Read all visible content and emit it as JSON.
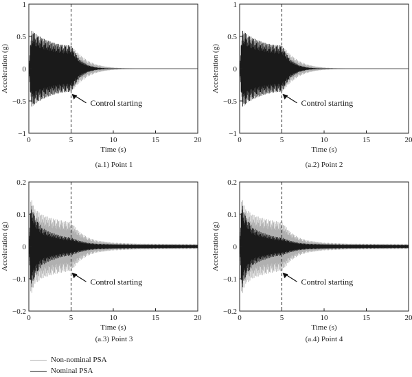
{
  "chart_data": [
    {
      "type": "line",
      "caption": "(a.1) Point 1",
      "xlabel": "Time (s)",
      "ylabel": "Acceleration (g)",
      "xlim": [
        0,
        20
      ],
      "ylim": [
        -1,
        1
      ],
      "xticks": [
        "0",
        "5",
        "10",
        "15",
        "20"
      ],
      "yticks": [
        "−1",
        "−0.5",
        "0",
        "0.5",
        "1"
      ],
      "ytick_values": [
        -1,
        -0.5,
        0,
        0.5,
        1
      ],
      "vline_x": 5,
      "annotation": {
        "text": "Control starting",
        "x": 5,
        "y": -0.36
      },
      "series": [
        {
          "name": "Non-nominal PSA",
          "color": "#b0b0b0",
          "envelope": [
            [
              0,
              0.0
            ],
            [
              0.3,
              0.6
            ],
            [
              1,
              0.52
            ],
            [
              2,
              0.45
            ],
            [
              3,
              0.4
            ],
            [
              4,
              0.37
            ],
            [
              5,
              0.36
            ],
            [
              6,
              0.22
            ],
            [
              7,
              0.12
            ],
            [
              8,
              0.065
            ],
            [
              9,
              0.035
            ],
            [
              10,
              0.018
            ],
            [
              11,
              0.009
            ],
            [
              12,
              0.004
            ],
            [
              12.6,
              0.0
            ]
          ]
        },
        {
          "name": "Nominal PSA",
          "color": "#1a1a1a",
          "envelope": [
            [
              0,
              0.0
            ],
            [
              0.3,
              0.6
            ],
            [
              1,
              0.52
            ],
            [
              2,
              0.45
            ],
            [
              3,
              0.4
            ],
            [
              4,
              0.37
            ],
            [
              5,
              0.36
            ],
            [
              6,
              0.14
            ],
            [
              7,
              0.055
            ],
            [
              8,
              0.02
            ],
            [
              9,
              0.008
            ],
            [
              10,
              0.003
            ],
            [
              11,
              0.0
            ]
          ]
        }
      ]
    },
    {
      "type": "line",
      "caption": "(a.2) Point 2",
      "xlabel": "Time (s)",
      "ylabel": "Acceleration (g)",
      "xlim": [
        0,
        20
      ],
      "ylim": [
        -1,
        1
      ],
      "xticks": [
        "0",
        "5",
        "10",
        "15",
        "20"
      ],
      "yticks": [
        "−1",
        "−0.5",
        "0",
        "0.5",
        "1"
      ],
      "ytick_values": [
        -1,
        -0.5,
        0,
        0.5,
        1
      ],
      "vline_x": 5,
      "annotation": {
        "text": "Control starting",
        "x": 5,
        "y": -0.36
      },
      "series": [
        {
          "name": "Non-nominal PSA",
          "color": "#b0b0b0",
          "envelope": [
            [
              0,
              0.0
            ],
            [
              0.3,
              0.6
            ],
            [
              1,
              0.52
            ],
            [
              2,
              0.45
            ],
            [
              3,
              0.4
            ],
            [
              4,
              0.37
            ],
            [
              5,
              0.36
            ],
            [
              6,
              0.22
            ],
            [
              7,
              0.12
            ],
            [
              8,
              0.065
            ],
            [
              9,
              0.035
            ],
            [
              10,
              0.018
            ],
            [
              11,
              0.009
            ],
            [
              12,
              0.004
            ],
            [
              12.6,
              0.0
            ]
          ]
        },
        {
          "name": "Nominal PSA",
          "color": "#1a1a1a",
          "envelope": [
            [
              0,
              0.0
            ],
            [
              0.3,
              0.6
            ],
            [
              1,
              0.52
            ],
            [
              2,
              0.45
            ],
            [
              3,
              0.4
            ],
            [
              4,
              0.37
            ],
            [
              5,
              0.36
            ],
            [
              6,
              0.14
            ],
            [
              7,
              0.055
            ],
            [
              8,
              0.02
            ],
            [
              9,
              0.008
            ],
            [
              10,
              0.003
            ],
            [
              11,
              0.0
            ]
          ]
        }
      ]
    },
    {
      "type": "line",
      "caption": "(a.3) Point 3",
      "xlabel": "Time (s)",
      "ylabel": "Acceleration (g)",
      "xlim": [
        0,
        20
      ],
      "ylim": [
        -0.2,
        0.2
      ],
      "xticks": [
        "0",
        "5",
        "10",
        "15",
        "20"
      ],
      "yticks": [
        "−0.2",
        "−0.1",
        "0",
        "0.1",
        "0.2"
      ],
      "ytick_values": [
        -0.2,
        -0.1,
        0,
        0.1,
        0.2
      ],
      "vline_x": 5,
      "annotation": {
        "text": "Control starting",
        "x": 5,
        "y": -0.075
      },
      "series": [
        {
          "name": "Non-nominal PSA",
          "color": "#b0b0b0",
          "envelope": [
            [
              0,
              0.0
            ],
            [
              0.25,
              0.16
            ],
            [
              0.6,
              0.12
            ],
            [
              1.5,
              0.1
            ],
            [
              2.5,
              0.09
            ],
            [
              4,
              0.08
            ],
            [
              5,
              0.076
            ],
            [
              6,
              0.045
            ],
            [
              7,
              0.028
            ],
            [
              8,
              0.019
            ],
            [
              10,
              0.012
            ],
            [
              13,
              0.009
            ],
            [
              20,
              0.008
            ]
          ]
        },
        {
          "name": "Nominal PSA",
          "color": "#1a1a1a",
          "envelope": [
            [
              0,
              0.0
            ],
            [
              0.25,
              0.14
            ],
            [
              0.6,
              0.1
            ],
            [
              1.5,
              0.06
            ],
            [
              2.5,
              0.045
            ],
            [
              4,
              0.032
            ],
            [
              5,
              0.028
            ],
            [
              6,
              0.018
            ],
            [
              7,
              0.012
            ],
            [
              8,
              0.009
            ],
            [
              10,
              0.007
            ],
            [
              13,
              0.006
            ],
            [
              20,
              0.005
            ]
          ]
        }
      ]
    },
    {
      "type": "line",
      "caption": "(a.4) Point 4",
      "xlabel": "Time (s)",
      "ylabel": "Acceleration (g)",
      "xlim": [
        0,
        20
      ],
      "ylim": [
        -0.2,
        0.2
      ],
      "xticks": [
        "0",
        "5",
        "10",
        "15",
        "20"
      ],
      "yticks": [
        "−0.2",
        "−0.1",
        "0",
        "0.1",
        "0.2"
      ],
      "ytick_values": [
        -0.2,
        -0.1,
        0,
        0.1,
        0.2
      ],
      "vline_x": 5,
      "annotation": {
        "text": "Control starting",
        "x": 5,
        "y": -0.075
      },
      "series": [
        {
          "name": "Non-nominal PSA",
          "color": "#b0b0b0",
          "envelope": [
            [
              0,
              0.0
            ],
            [
              0.25,
              0.16
            ],
            [
              0.6,
              0.12
            ],
            [
              1.5,
              0.1
            ],
            [
              2.5,
              0.09
            ],
            [
              4,
              0.08
            ],
            [
              5,
              0.076
            ],
            [
              6,
              0.045
            ],
            [
              7,
              0.028
            ],
            [
              8,
              0.019
            ],
            [
              10,
              0.012
            ],
            [
              13,
              0.009
            ],
            [
              20,
              0.008
            ]
          ]
        },
        {
          "name": "Nominal PSA",
          "color": "#1a1a1a",
          "envelope": [
            [
              0,
              0.0
            ],
            [
              0.25,
              0.14
            ],
            [
              0.6,
              0.1
            ],
            [
              1.5,
              0.06
            ],
            [
              2.5,
              0.045
            ],
            [
              4,
              0.032
            ],
            [
              5,
              0.028
            ],
            [
              6,
              0.018
            ],
            [
              7,
              0.012
            ],
            [
              8,
              0.009
            ],
            [
              10,
              0.007
            ],
            [
              13,
              0.006
            ],
            [
              20,
              0.005
            ]
          ]
        }
      ]
    }
  ],
  "legend": [
    {
      "label": "Non-nominal PSA",
      "color": "#b0b0b0"
    },
    {
      "label": "Nominal PSA",
      "color": "#1a1a1a"
    }
  ]
}
